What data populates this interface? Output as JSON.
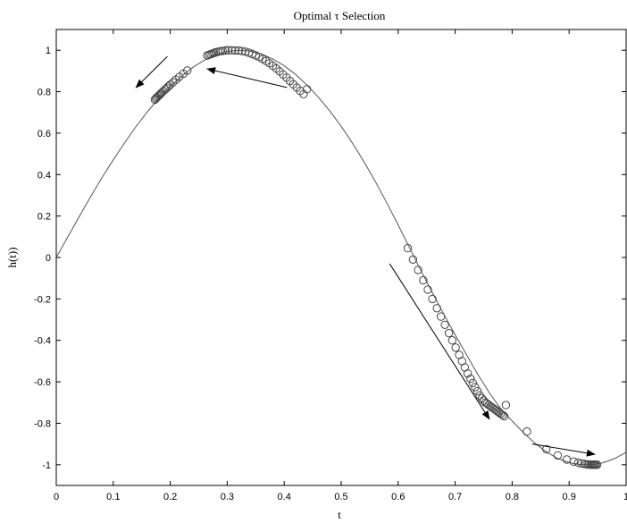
{
  "chart_data": {
    "type": "line",
    "title": "Optimal τ Selection",
    "xlabel": "t",
    "ylabel": "h(t))",
    "xlim": [
      0,
      1
    ],
    "ylim": [
      -1.1,
      1.1
    ],
    "xticks": [
      0,
      0.1,
      0.2,
      0.3,
      0.4,
      0.5,
      0.6,
      0.7,
      0.8,
      0.9,
      1
    ],
    "xtick_labels": [
      "0",
      "0.1",
      "0.2",
      "0.3",
      "0.4",
      "0.5",
      "0.6",
      "0.7",
      "0.8",
      "0.9",
      "1"
    ],
    "yticks": [
      -1,
      -0.8,
      -0.6,
      -0.4,
      -0.2,
      0,
      0.2,
      0.4,
      0.6,
      0.8,
      1
    ],
    "ytick_labels": [
      "-1",
      "-0.8",
      "-0.6",
      "-0.4",
      "-0.2",
      "0",
      "0.2",
      "0.4",
      "0.6",
      "0.8",
      "1"
    ],
    "grid": false,
    "line_color": "#555555",
    "marker_color": "#444444",
    "curve": {
      "x": [
        0,
        0.02,
        0.04,
        0.06,
        0.08,
        0.1,
        0.12,
        0.14,
        0.16,
        0.18,
        0.2,
        0.22,
        0.24,
        0.26,
        0.28,
        0.3,
        0.32,
        0.34,
        0.36,
        0.38,
        0.4,
        0.42,
        0.44,
        0.46,
        0.48,
        0.5,
        0.52,
        0.54,
        0.56,
        0.58,
        0.6,
        0.62,
        0.64,
        0.66,
        0.68,
        0.7,
        0.72,
        0.74,
        0.76,
        0.78,
        0.8,
        0.82,
        0.84,
        0.86,
        0.88,
        0.9,
        0.92,
        0.94,
        0.96,
        0.98,
        1.0
      ],
      "y": [
        0,
        0.098,
        0.196,
        0.292,
        0.384,
        0.471,
        0.554,
        0.632,
        0.703,
        0.768,
        0.826,
        0.874,
        0.918,
        0.952,
        0.978,
        0.993,
        1.0,
        0.996,
        0.982,
        0.958,
        0.925,
        0.883,
        0.832,
        0.773,
        0.707,
        0.633,
        0.551,
        0.462,
        0.366,
        0.264,
        0.157,
        0.046,
        -0.064,
        -0.17,
        -0.273,
        -0.373,
        -0.47,
        -0.565,
        -0.653,
        -0.729,
        -0.789,
        -0.846,
        -0.896,
        -0.938,
        -0.97,
        -0.99,
        -1.0,
        -1.0,
        -0.99,
        -0.97,
        -0.94
      ]
    },
    "points": {
      "x": [
        0.173,
        0.175,
        0.177,
        0.179,
        0.181,
        0.183,
        0.185,
        0.188,
        0.191,
        0.194,
        0.197,
        0.2,
        0.205,
        0.21,
        0.216,
        0.223,
        0.23,
        0.265,
        0.268,
        0.271,
        0.274,
        0.277,
        0.28,
        0.284,
        0.288,
        0.292,
        0.297,
        0.302,
        0.308,
        0.314,
        0.32,
        0.326,
        0.332,
        0.338,
        0.344,
        0.35,
        0.356,
        0.362,
        0.368,
        0.374,
        0.38,
        0.386,
        0.392,
        0.398,
        0.404,
        0.41,
        0.416,
        0.422,
        0.428,
        0.434,
        0.44,
        0.617,
        0.626,
        0.635,
        0.644,
        0.652,
        0.66,
        0.668,
        0.675,
        0.682,
        0.689,
        0.695,
        0.701,
        0.707,
        0.712,
        0.717,
        0.722,
        0.727,
        0.731,
        0.735,
        0.739,
        0.743,
        0.747,
        0.75,
        0.753,
        0.756,
        0.759,
        0.762,
        0.765,
        0.768,
        0.771,
        0.774,
        0.777,
        0.78,
        0.783,
        0.786,
        0.789,
        0.826,
        0.86,
        0.88,
        0.896,
        0.908,
        0.916,
        0.922,
        0.927,
        0.931,
        0.934,
        0.937,
        0.939,
        0.941,
        0.943,
        0.945,
        0.947,
        0.949
      ],
      "y": [
        0.762,
        0.768,
        0.773,
        0.779,
        0.784,
        0.79,
        0.795,
        0.803,
        0.811,
        0.818,
        0.826,
        0.834,
        0.846,
        0.858,
        0.872,
        0.887,
        0.902,
        0.975,
        0.978,
        0.981,
        0.984,
        0.987,
        0.99,
        0.993,
        0.995,
        0.997,
        0.999,
        1.0,
        1.0,
        0.999,
        0.998,
        0.996,
        0.993,
        0.988,
        0.982,
        0.975,
        0.967,
        0.958,
        0.948,
        0.937,
        0.925,
        0.912,
        0.898,
        0.883,
        0.868,
        0.852,
        0.836,
        0.82,
        0.804,
        0.788,
        0.812,
        0.045,
        -0.01,
        -0.06,
        -0.11,
        -0.155,
        -0.2,
        -0.245,
        -0.285,
        -0.325,
        -0.365,
        -0.4,
        -0.435,
        -0.47,
        -0.5,
        -0.53,
        -0.56,
        -0.585,
        -0.605,
        -0.625,
        -0.645,
        -0.665,
        -0.68,
        -0.69,
        -0.7,
        -0.705,
        -0.712,
        -0.718,
        -0.724,
        -0.73,
        -0.736,
        -0.742,
        -0.748,
        -0.754,
        -0.76,
        -0.766,
        -0.712,
        -0.84,
        -0.925,
        -0.955,
        -0.975,
        -0.985,
        -0.99,
        -0.994,
        -0.996,
        -0.998,
        -0.999,
        -1.0,
        -1.0,
        -1.0,
        -1.0,
        -1.0,
        -1.0,
        -1.0
      ]
    },
    "arrows": [
      {
        "from": [
          0.195,
          0.97
        ],
        "to": [
          0.14,
          0.82
        ]
      },
      {
        "from": [
          0.405,
          0.82
        ],
        "to": [
          0.265,
          0.91
        ]
      },
      {
        "from": [
          0.585,
          -0.03
        ],
        "to": [
          0.76,
          -0.78
        ]
      },
      {
        "from": [
          0.835,
          -0.9
        ],
        "to": [
          0.945,
          -0.95
        ]
      }
    ]
  }
}
